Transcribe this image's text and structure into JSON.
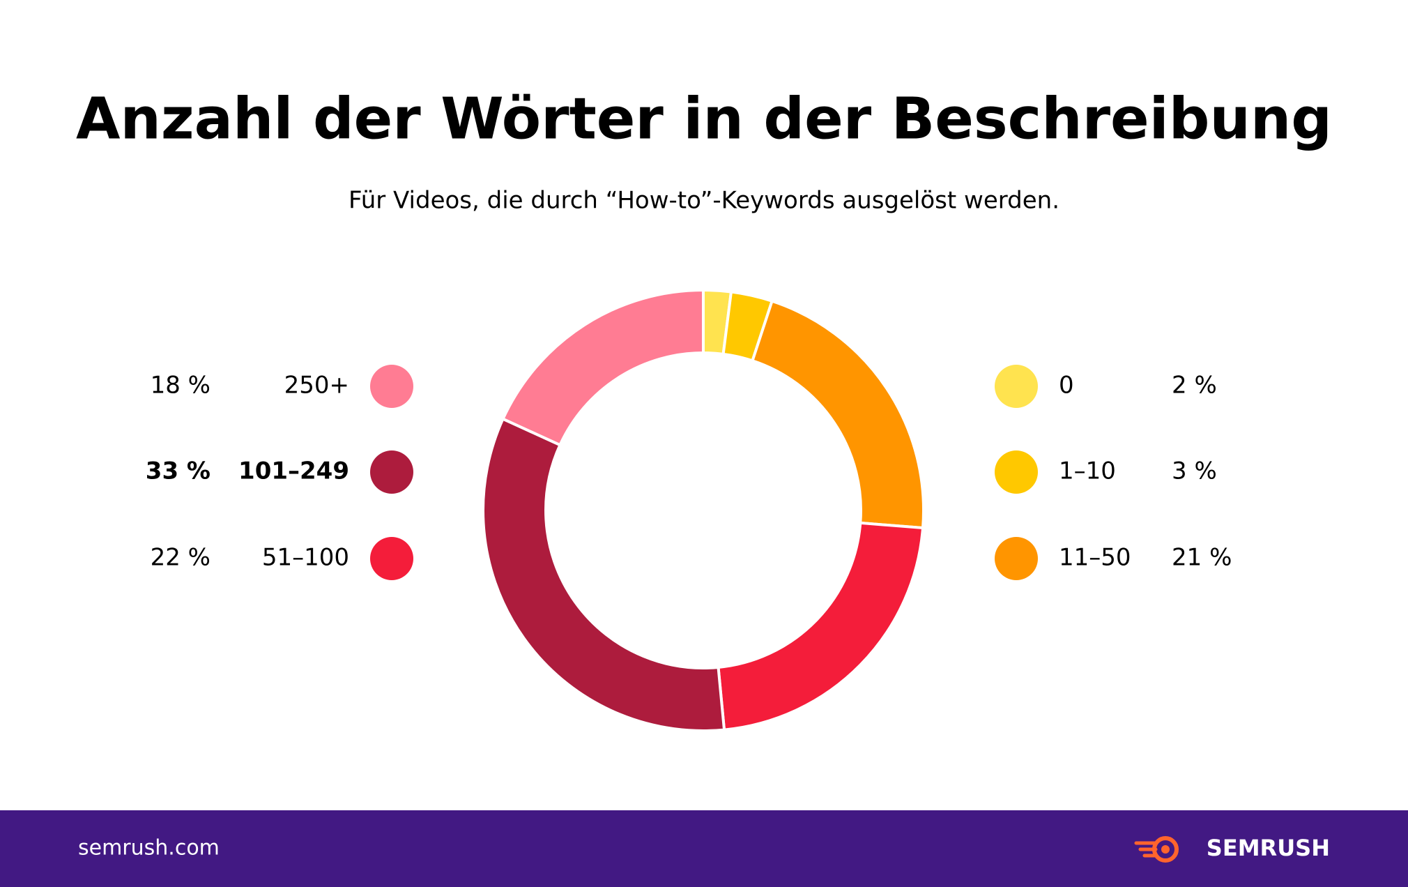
{
  "chart_data": {
    "type": "donut",
    "title": "Anzahl der Wörter in der Beschreibung",
    "subtitle": "Für Videos, die durch “How-to”-Keywords ausgelöst werden.",
    "categories": [
      "0",
      "1–10",
      "11–50",
      "51–100",
      "101–249",
      "250+"
    ],
    "values": [
      2,
      3,
      21,
      22,
      33,
      18
    ],
    "value_labels": [
      "2 %",
      "3 %",
      "21 %",
      "22 %",
      "33 %",
      "18 %"
    ],
    "colors": [
      "#ffe34f",
      "#ffc800",
      "#ff9500",
      "#f41d3a",
      "#ad1c3d",
      "#ff7c93"
    ]
  },
  "footer": {
    "url": "semrush.com",
    "brand": "SEMRUSH"
  }
}
